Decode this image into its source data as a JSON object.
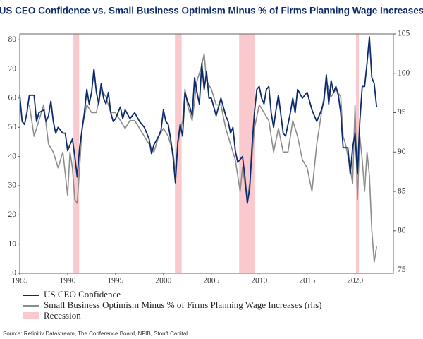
{
  "chart_data": {
    "type": "line",
    "title": "US CEO Confidence vs. Small Business Optimism Minus % of Firms Planning Wage Increases",
    "source": "Source: Refinitiv Datastream, The Conference Board, NFIB, Stouff Capital",
    "xlim": [
      1985,
      2024
    ],
    "xticks": [
      1985,
      1990,
      1995,
      2000,
      2005,
      2010,
      2015,
      2020
    ],
    "ylim": [
      0,
      82
    ],
    "yticks": [
      0,
      10,
      20,
      30,
      40,
      50,
      60,
      70,
      80
    ],
    "y2lim": [
      74.6,
      105
    ],
    "y2ticks": [
      75,
      80,
      85,
      90,
      95,
      100,
      105
    ],
    "recession": {
      "name": "Recession",
      "color": "#f9c9cd",
      "periods": [
        [
          1990.6,
          1991.2
        ],
        [
          2001.2,
          2001.9
        ],
        [
          2007.9,
          2009.5
        ],
        [
          2020.1,
          2020.4
        ]
      ]
    },
    "series": [
      {
        "name": "US CEO Confidence",
        "color": "#0d2b6b",
        "x": [
          1985.0,
          1985.25,
          1985.5,
          1985.75,
          1986.0,
          1986.5,
          1986.75,
          1987,
          1987.5,
          1987.75,
          1988,
          1988.25,
          1988.5,
          1988.75,
          1989,
          1989.5,
          1989.75,
          1990,
          1990.25,
          1990.5,
          1990.75,
          1991,
          1991.25,
          1991.5,
          1991.75,
          1992,
          1992.25,
          1992.5,
          1992.75,
          1993,
          1993.25,
          1993.5,
          1993.75,
          1994,
          1994.25,
          1994.5,
          1994.75,
          1995,
          1995.5,
          1995.75,
          1996,
          1996.5,
          1997,
          1997.5,
          1998,
          1998.5,
          1998.75,
          1999,
          1999.5,
          1999.75,
          2000,
          2000.25,
          2000.5,
          2000.75,
          2001,
          2001.25,
          2001.5,
          2001.75,
          2002,
          2002.25,
          2002.5,
          2002.75,
          2003,
          2003.25,
          2003.5,
          2003.75,
          2004,
          2004.25,
          2004.5,
          2004.75,
          2005,
          2005.5,
          2005.75,
          2006,
          2006.5,
          2006.75,
          2007,
          2007.25,
          2007.5,
          2007.75,
          2008,
          2008.25,
          2008.5,
          2008.75,
          2009,
          2009.25,
          2009.5,
          2009.75,
          2010,
          2010.25,
          2010.5,
          2010.75,
          2011,
          2011.25,
          2011.5,
          2011.75,
          2012,
          2012.5,
          2012.75,
          2013,
          2013.25,
          2013.5,
          2013.75,
          2014,
          2014.5,
          2015,
          2015.5,
          2015.75,
          2016,
          2016.5,
          2016.75,
          2017,
          2017.25,
          2017.5,
          2017.75,
          2018,
          2018.25,
          2018.5,
          2018.75,
          2019,
          2019.25,
          2019.5,
          2019.75,
          2020,
          2020.25,
          2020.5,
          2020.75,
          2021,
          2021.25,
          2021.5,
          2021.75,
          2022,
          2022.25
        ],
        "values": [
          61,
          52,
          51,
          55,
          61,
          61,
          52,
          55,
          56,
          52,
          54,
          59,
          52,
          48,
          50,
          48,
          48,
          42,
          44,
          46,
          40,
          33,
          43,
          49,
          55,
          63,
          58,
          62,
          70,
          62,
          58,
          65,
          60,
          58,
          62,
          55,
          52,
          53,
          57,
          53,
          56,
          53,
          55,
          52,
          50,
          46,
          41,
          44,
          47,
          49,
          56,
          52,
          51,
          46,
          40,
          31,
          45,
          51,
          47,
          62,
          59,
          57,
          54,
          67,
          62,
          58,
          72,
          63,
          69,
          60,
          60,
          54,
          57,
          60,
          54,
          52,
          48,
          50,
          42,
          38,
          39,
          40,
          33,
          24,
          29,
          44,
          55,
          63,
          64,
          60,
          58,
          63,
          64,
          55,
          50,
          56,
          61,
          48,
          47,
          51,
          55,
          60,
          55,
          63,
          60,
          62,
          56,
          54,
          52,
          56,
          59,
          68,
          58,
          66,
          62,
          64,
          61,
          55,
          43,
          43,
          43,
          34,
          43,
          48,
          34,
          52,
          64,
          64,
          72,
          81,
          67,
          65,
          57
        ]
      },
      {
        "name": "Small Business Optimism Minus % of Firms Planning Wage Increases (rhs)",
        "color": "#8c8c8c",
        "axis": "y2",
        "x": [
          1986,
          1986.5,
          1987,
          1987.5,
          1988,
          1988.5,
          1989,
          1989.5,
          1990,
          1990.25,
          1990.5,
          1990.75,
          1991,
          1991.25,
          1991.5,
          1992,
          1992.5,
          1993,
          1993.5,
          1994,
          1994.5,
          1995,
          1995.5,
          1996,
          1996.5,
          1997,
          1997.5,
          1998,
          1998.5,
          1999,
          1999.5,
          2000,
          2000.5,
          2001,
          2001.25,
          2001.5,
          2002,
          2002.25,
          2002.5,
          2003,
          2003.5,
          2004,
          2004.25,
          2004.5,
          2005,
          2005.5,
          2006,
          2006.5,
          2007,
          2007.5,
          2008,
          2008.25,
          2008.75,
          2009,
          2009.5,
          2010,
          2010.5,
          2011,
          2011.5,
          2012,
          2012.5,
          2013,
          2013.5,
          2014,
          2014.5,
          2015,
          2015.5,
          2016,
          2016.5,
          2017,
          2017.5,
          2018,
          2018.5,
          2018.75,
          2019,
          2019.5,
          2019.75,
          2020,
          2020.25,
          2020.5,
          2020.75,
          2021,
          2021.25,
          2021.5,
          2021.75,
          2022,
          2022.25
        ],
        "values": [
          96,
          92,
          94,
          96,
          91,
          90,
          88,
          90,
          84.5,
          90,
          88,
          84,
          83.5,
          88,
          93,
          96,
          95,
          95,
          98,
          97,
          95,
          95,
          94,
          93,
          94,
          94,
          93,
          92,
          91,
          90,
          92,
          93,
          92,
          90,
          87.5,
          91,
          94,
          98,
          96,
          94,
          99,
          101,
          102.5,
          99,
          98,
          96,
          96,
          93,
          91,
          89,
          85,
          88,
          84,
          86,
          93,
          96,
          95,
          94,
          90,
          93,
          90,
          90,
          94,
          92,
          89,
          88,
          85,
          91,
          95,
          99,
          97,
          98,
          97,
          92,
          91,
          88,
          86,
          96,
          84,
          92,
          89,
          85,
          90,
          87,
          80,
          76,
          78
        ]
      }
    ]
  }
}
